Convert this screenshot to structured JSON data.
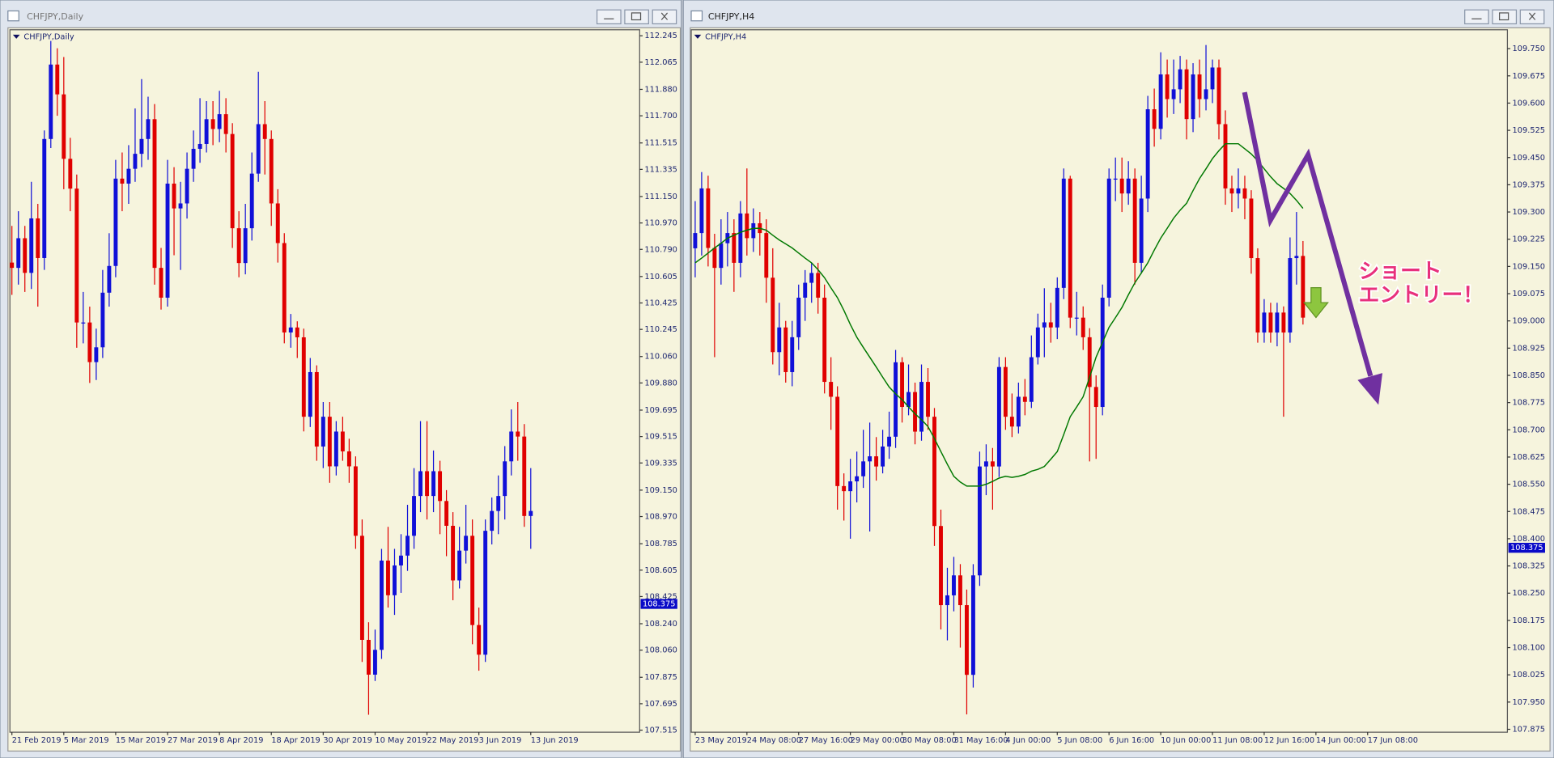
{
  "chart_data": [
    {
      "type": "candlestick",
      "title": "CHFJPY,Daily",
      "current_price": 108.375,
      "up_color": "#1010d8",
      "down_color": "#e00000",
      "ylim": [
        107.501,
        112.286
      ],
      "yticks": [
        112.245,
        112.065,
        {
          "value": 111.88,
          "label": "111.880"
        },
        {
          "value": 111.7,
          "label": "111.700"
        },
        111.515,
        111.335,
        {
          "value": 111.15,
          "label": "111.150"
        },
        {
          "value": 110.97,
          "label": "110.970"
        },
        {
          "value": 110.79,
          "label": "110.790"
        },
        110.605,
        110.425,
        110.245,
        {
          "value": 110.06,
          "label": "110.060"
        },
        {
          "value": 109.88,
          "label": "109.880"
        },
        109.695,
        109.515,
        109.335,
        {
          "value": 109.15,
          "label": "109.150"
        },
        {
          "value": 108.97,
          "label": "108.970"
        },
        108.785,
        108.605,
        108.425,
        {
          "value": 108.24,
          "label": "108.240"
        },
        {
          "value": 108.06,
          "label": "108.060"
        },
        107.875,
        107.695,
        107.515
      ],
      "categories": [
        "21 Feb 2019",
        null,
        null,
        null,
        null,
        null,
        null,
        null,
        "5 Mar 2019",
        null,
        null,
        null,
        null,
        null,
        null,
        null,
        "15 Mar 2019",
        null,
        null,
        null,
        null,
        null,
        null,
        null,
        "27 Mar 2019",
        null,
        null,
        null,
        null,
        null,
        null,
        null,
        "8 Apr 2019",
        null,
        null,
        null,
        null,
        null,
        null,
        null,
        "18 Apr 2019",
        null,
        null,
        null,
        null,
        null,
        null,
        null,
        "30 Apr 2019",
        null,
        null,
        null,
        null,
        null,
        null,
        null,
        "10 May 2019",
        null,
        null,
        null,
        null,
        null,
        null,
        null,
        "22 May 2019",
        null,
        null,
        null,
        null,
        null,
        null,
        null,
        "3 Jun 2019",
        null,
        null,
        null,
        null,
        null,
        null,
        null,
        "13 Jun 2019"
      ],
      "open": [
        110.7,
        110.664,
        110.866,
        110.63,
        111.001,
        110.731,
        111.542,
        112.049,
        111.846,
        111.407,
        111.204,
        110.292,
        110.292,
        110.022,
        110.123,
        110.495,
        110.677,
        111.272,
        111.238,
        111.339,
        111.441,
        111.542,
        111.677,
        110.664,
        110.461,
        111.238,
        111.069,
        111.103,
        111.339,
        111.475,
        111.508,
        111.677,
        111.61,
        111.711,
        111.576,
        110.934,
        110.697,
        110.934,
        111.306,
        111.643,
        111.542,
        111.103,
        110.833,
        110.224,
        110.258,
        110.191,
        109.65,
        109.954,
        109.447,
        109.65,
        109.312,
        109.549,
        109.414,
        109.312,
        108.839,
        108.13,
        107.893,
        108.062,
        108.67,
        108.434,
        108.637,
        108.704,
        108.839,
        109.11,
        109.279,
        109.11,
        109.279,
        109.076,
        108.907,
        108.535,
        108.738,
        108.839,
        108.231,
        108.029,
        108.873,
        109.008,
        109.11,
        109.346,
        109.549,
        109.515,
        108.974
      ],
      "high": [
        110.95,
        111.05,
        110.95,
        111.25,
        111.1,
        111.6,
        112.21,
        112.16,
        112.1,
        111.55,
        111.3,
        110.5,
        110.4,
        110.25,
        110.65,
        110.9,
        111.4,
        111.45,
        111.5,
        111.75,
        111.95,
        111.83,
        111.78,
        110.8,
        111.4,
        111.35,
        111.25,
        111.45,
        111.6,
        111.82,
        111.8,
        111.8,
        111.87,
        111.82,
        111.65,
        111.05,
        111.1,
        111.45,
        112.0,
        111.8,
        111.6,
        111.2,
        110.9,
        110.35,
        110.3,
        110.25,
        110.05,
        110.0,
        109.75,
        109.75,
        109.62,
        109.65,
        109.5,
        109.38,
        108.95,
        108.25,
        108.2,
        108.75,
        108.9,
        108.75,
        108.85,
        109.05,
        109.3,
        109.62,
        109.62,
        109.42,
        109.35,
        109.15,
        109.0,
        108.9,
        109.05,
        108.95,
        108.35,
        108.95,
        109.1,
        109.25,
        109.45,
        109.7,
        109.75,
        109.6,
        109.3
      ],
      "low": [
        110.48,
        110.55,
        110.5,
        110.52,
        110.4,
        110.65,
        111.48,
        111.7,
        111.2,
        111.05,
        110.12,
        110.15,
        109.88,
        109.9,
        110.05,
        110.4,
        110.6,
        111.05,
        111.1,
        111.25,
        111.35,
        111.4,
        110.55,
        110.38,
        110.4,
        110.75,
        110.65,
        111.0,
        111.25,
        111.38,
        111.45,
        111.5,
        111.52,
        111.45,
        110.8,
        110.6,
        110.62,
        110.85,
        111.25,
        111.3,
        110.95,
        110.7,
        110.15,
        110.12,
        110.05,
        109.55,
        109.58,
        109.35,
        109.3,
        109.2,
        109.25,
        109.35,
        109.2,
        108.75,
        107.98,
        107.62,
        107.85,
        108.0,
        108.35,
        108.3,
        108.45,
        108.6,
        108.75,
        109.0,
        108.95,
        109.0,
        108.85,
        108.7,
        108.4,
        108.48,
        108.65,
        108.1,
        107.92,
        107.98,
        108.78,
        108.85,
        108.95,
        109.25,
        109.35,
        108.9,
        108.75
      ],
      "close": [
        110.664,
        110.866,
        110.63,
        111.001,
        110.731,
        111.542,
        112.049,
        111.846,
        111.407,
        111.204,
        110.292,
        110.292,
        110.022,
        110.123,
        110.495,
        110.677,
        111.272,
        111.238,
        111.339,
        111.441,
        111.542,
        111.677,
        110.664,
        110.461,
        111.238,
        111.069,
        111.103,
        111.339,
        111.475,
        111.508,
        111.677,
        111.61,
        111.711,
        111.576,
        110.934,
        110.697,
        110.934,
        111.306,
        111.643,
        111.542,
        111.103,
        110.833,
        110.224,
        110.258,
        110.191,
        109.65,
        109.954,
        109.447,
        109.65,
        109.312,
        109.549,
        109.414,
        109.312,
        108.839,
        108.13,
        107.893,
        108.062,
        108.67,
        108.434,
        108.637,
        108.704,
        108.839,
        109.11,
        109.279,
        109.11,
        109.279,
        109.076,
        108.907,
        108.535,
        108.738,
        108.839,
        108.231,
        108.029,
        108.873,
        109.008,
        109.11,
        109.346,
        109.549,
        109.515,
        108.974,
        109.008
      ]
    },
    {
      "type": "candlestick",
      "title": "CHFJPY,H4",
      "current_price": 108.375,
      "up_color": "#1010d8",
      "down_color": "#e00000",
      "ma_color": "#007800",
      "annotations": [
        "ショート",
        "エントリー！"
      ],
      "ylim": [
        107.867,
        109.802
      ],
      "yticks": [
        {
          "value": 109.75,
          "label": "109.750"
        },
        109.675,
        {
          "value": 109.6,
          "label": "109.600"
        },
        109.525,
        {
          "value": 109.45,
          "label": "109.450"
        },
        109.375,
        {
          "value": 109.3,
          "label": "109.300"
        },
        109.225,
        {
          "value": 109.15,
          "label": "109.150"
        },
        109.075,
        {
          "value": 109,
          "label": "109.000"
        },
        108.925,
        {
          "value": 108.85,
          "label": "108.850"
        },
        108.775,
        {
          "value": 108.7,
          "label": "108.700"
        },
        108.625,
        {
          "value": 108.55,
          "label": "108.550"
        },
        108.475,
        {
          "value": 108.4,
          "label": "108.400"
        },
        108.325,
        {
          "value": 108.25,
          "label": "108.250"
        },
        108.175,
        {
          "value": 108.1,
          "label": "108.100"
        },
        108.025,
        {
          "value": 107.95,
          "label": "107.950"
        },
        107.875
      ],
      "categories": [
        "23 May 2019",
        null,
        null,
        null,
        null,
        null,
        null,
        null,
        "24 May 08:00",
        null,
        null,
        null,
        null,
        null,
        null,
        null,
        "27 May 16:00",
        null,
        null,
        null,
        null,
        null,
        null,
        null,
        "29 May 00:00",
        null,
        null,
        null,
        null,
        null,
        null,
        null,
        "30 May 08:00",
        null,
        null,
        null,
        null,
        null,
        null,
        null,
        "31 May 16:00",
        null,
        null,
        null,
        null,
        null,
        null,
        null,
        "4 Jun 00:00",
        null,
        null,
        null,
        null,
        null,
        null,
        null,
        "5 Jun 08:00",
        null,
        null,
        null,
        null,
        null,
        null,
        null,
        "6 Jun 16:00",
        null,
        null,
        null,
        null,
        null,
        null,
        null,
        "10 Jun 00:00",
        null,
        null,
        null,
        null,
        null,
        null,
        null,
        "11 Jun 08:00",
        null,
        null,
        null,
        null,
        null,
        null,
        null,
        "12 Jun 16:00",
        null,
        null,
        null,
        null,
        null,
        null,
        null,
        "14 Jun 00:00",
        null,
        null,
        null,
        null,
        null,
        null,
        null,
        "17 Jun 08:00"
      ],
      "open": [
        109.2,
        109.242,
        109.365,
        109.201,
        109.146,
        109.214,
        109.242,
        109.16,
        109.296,
        109.228,
        109.269,
        109.242,
        109.119,
        108.914,
        108.982,
        108.859,
        108.955,
        109.064,
        109.105,
        109.132,
        109.064,
        108.832,
        108.791,
        108.545,
        108.531,
        108.558,
        108.572,
        108.613,
        108.627,
        108.599,
        108.654,
        108.681,
        108.886,
        108.763,
        108.804,
        108.695,
        108.832,
        108.736,
        108.435,
        108.217,
        108.244,
        108.299,
        108.217,
        108.025,
        108.299,
        108.599,
        108.613,
        108.599,
        108.873,
        108.736,
        108.709,
        108.791,
        108.777,
        108.9,
        108.982,
        108.996,
        108.982,
        109.091,
        109.392,
        109.009,
        109.009,
        108.955,
        108.818,
        108.763,
        109.064,
        109.392,
        109.392,
        109.351,
        109.392,
        109.16,
        109.337,
        109.583,
        109.529,
        109.679,
        109.611,
        109.638,
        109.693,
        109.556,
        109.679,
        109.611,
        109.638,
        109.698,
        109.542,
        109.365,
        109.351,
        109.365,
        109.337,
        109.173,
        108.968,
        109.023,
        108.968,
        109.023,
        108.968,
        109.173,
        109.179,
        null,
        null,
        null,
        null,
        null,
        null,
        null,
        null,
        null,
        null
      ],
      "high": [
        109.33,
        109.41,
        109.4,
        109.24,
        109.28,
        109.3,
        109.28,
        109.33,
        109.42,
        109.31,
        109.3,
        109.28,
        109.2,
        109.05,
        109.0,
        109.0,
        109.1,
        109.14,
        109.16,
        109.16,
        109.1,
        108.9,
        108.82,
        108.58,
        108.62,
        108.64,
        108.7,
        108.72,
        108.68,
        108.7,
        108.75,
        108.92,
        108.9,
        108.88,
        108.83,
        108.88,
        108.87,
        108.76,
        108.48,
        108.32,
        108.35,
        108.33,
        108.26,
        108.33,
        108.64,
        108.66,
        108.65,
        108.9,
        108.9,
        108.8,
        108.83,
        108.84,
        108.96,
        109.02,
        109.09,
        109.05,
        109.12,
        109.42,
        109.4,
        109.08,
        109.04,
        108.98,
        108.85,
        109.1,
        109.42,
        109.45,
        109.45,
        109.44,
        109.42,
        109.4,
        109.62,
        109.64,
        109.74,
        109.72,
        109.72,
        109.73,
        109.72,
        109.71,
        109.72,
        109.76,
        109.72,
        109.72,
        109.58,
        109.4,
        109.42,
        109.4,
        109.36,
        109.2,
        109.06,
        109.05,
        109.05,
        109.04,
        109.23,
        109.3,
        109.22,
        null,
        null,
        null,
        null,
        null,
        null,
        null,
        null,
        null,
        null
      ],
      "low": [
        109.12,
        109.18,
        109.15,
        108.9,
        109.1,
        109.15,
        109.08,
        109.12,
        109.18,
        109.19,
        109.18,
        109.05,
        108.88,
        108.85,
        108.83,
        108.82,
        108.92,
        109.0,
        109.05,
        109.02,
        108.8,
        108.7,
        108.48,
        108.45,
        108.4,
        108.5,
        108.54,
        108.42,
        108.56,
        108.58,
        108.62,
        108.65,
        108.72,
        108.74,
        108.66,
        108.67,
        108.7,
        108.38,
        108.15,
        108.12,
        108.2,
        108.1,
        107.916,
        107.99,
        108.27,
        108.52,
        108.48,
        108.57,
        108.7,
        108.68,
        108.69,
        108.74,
        108.76,
        108.88,
        108.9,
        108.94,
        108.95,
        109.06,
        108.98,
        108.96,
        108.92,
        108.613,
        108.62,
        108.74,
        109.04,
        109.33,
        109.3,
        109.32,
        109.1,
        109.13,
        109.3,
        109.48,
        109.5,
        109.56,
        109.57,
        109.6,
        109.5,
        109.52,
        109.56,
        109.58,
        109.6,
        109.5,
        109.32,
        109.3,
        109.31,
        109.28,
        109.13,
        108.94,
        108.94,
        108.94,
        108.93,
        108.736,
        108.94,
        109.1,
        108.99,
        null,
        null,
        null,
        null,
        null,
        null,
        null,
        null,
        null,
        null
      ],
      "close": [
        109.242,
        109.365,
        109.201,
        109.146,
        109.214,
        109.242,
        109.16,
        109.296,
        109.228,
        109.269,
        109.242,
        109.119,
        108.914,
        108.982,
        108.859,
        108.955,
        109.064,
        109.105,
        109.132,
        109.064,
        108.832,
        108.791,
        108.545,
        108.531,
        108.558,
        108.572,
        108.613,
        108.627,
        108.599,
        108.654,
        108.681,
        108.886,
        108.763,
        108.804,
        108.695,
        108.832,
        108.736,
        108.435,
        108.217,
        108.244,
        108.299,
        108.217,
        108.025,
        108.299,
        108.599,
        108.613,
        108.599,
        108.873,
        108.736,
        108.709,
        108.791,
        108.777,
        108.9,
        108.982,
        108.996,
        108.982,
        109.091,
        109.392,
        109.009,
        109.009,
        108.955,
        108.818,
        108.763,
        109.064,
        109.392,
        109.392,
        109.351,
        109.392,
        109.16,
        109.337,
        109.583,
        109.529,
        109.679,
        109.611,
        109.638,
        109.693,
        109.556,
        109.679,
        109.611,
        109.638,
        109.698,
        109.542,
        109.365,
        109.351,
        109.365,
        109.337,
        109.173,
        108.968,
        109.023,
        108.968,
        109.023,
        108.968,
        109.173,
        109.179,
        109.009,
        null,
        null,
        null,
        null,
        null,
        null,
        null,
        null,
        null,
        null
      ],
      "ma": [
        109.16,
        109.173,
        109.187,
        109.201,
        109.214,
        109.228,
        109.236,
        109.244,
        109.25,
        109.255,
        109.255,
        109.25,
        109.236,
        109.223,
        109.212,
        109.201,
        109.187,
        109.173,
        109.16,
        109.141,
        109.119,
        109.091,
        109.064,
        109.029,
        108.99,
        108.955,
        108.927,
        108.9,
        108.873,
        108.845,
        108.818,
        108.799,
        108.783,
        108.763,
        108.744,
        108.728,
        108.709,
        108.676,
        108.64,
        108.605,
        108.572,
        108.556,
        108.545,
        108.545,
        108.545,
        108.55,
        108.558,
        108.567,
        108.572,
        108.569,
        108.572,
        108.577,
        108.586,
        108.591,
        108.599,
        108.619,
        108.64,
        108.687,
        108.736,
        108.763,
        108.791,
        108.845,
        108.9,
        108.941,
        108.982,
        109.009,
        109.037,
        109.072,
        109.105,
        109.132,
        109.16,
        109.195,
        109.228,
        109.255,
        109.283,
        109.305,
        109.324,
        109.359,
        109.392,
        109.419,
        109.447,
        109.469,
        109.488,
        109.488,
        109.488,
        109.474,
        109.46,
        109.441,
        109.419,
        109.397,
        109.378,
        109.365,
        109.351,
        109.332,
        109.31,
        null,
        null,
        null,
        null,
        null,
        null,
        null,
        null,
        null,
        null
      ]
    }
  ]
}
